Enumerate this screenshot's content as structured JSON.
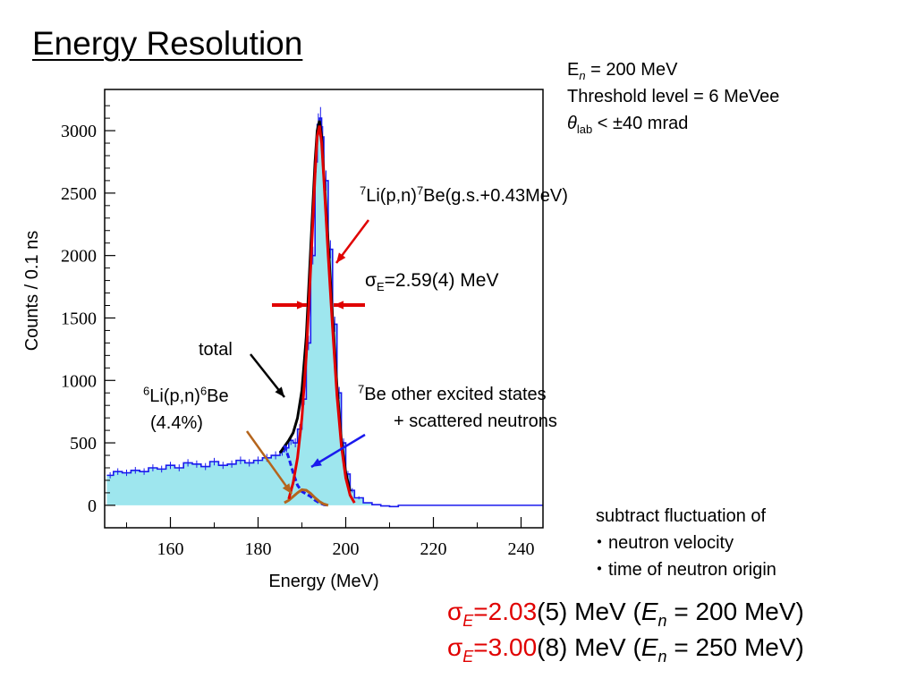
{
  "title": "Energy Resolution",
  "conditions": {
    "en_label": "E",
    "en_sub": "n",
    "en_value": " = 200 MeV",
    "threshold": "Threshold level = 6 MeVee",
    "theta_symbol": "θ",
    "theta_sub": "lab",
    "theta_value": " < ±40 mrad"
  },
  "annotations": {
    "main_peak_sup1": "7",
    "main_peak_mid": "Li(p,n)",
    "main_peak_sup2": "7",
    "main_peak_end": "Be(g.s.+0.43MeV)",
    "sigma_symbol": "σ",
    "sigma_sub": "E",
    "sigma_value": "=2.59(4) MeV",
    "total": "total",
    "li6_sup1": "6",
    "li6_mid": "Li(p,n)",
    "li6_sup2": "6",
    "li6_end": "Be",
    "li6_percent": "(4.4%)",
    "be7_sup": "7",
    "be7_line1": "Be other excited states",
    "be7_line2": "+ scattered neutrons"
  },
  "notes": {
    "heading": "subtract fluctuation of",
    "item1": "・neutron velocity",
    "item2": "・time of neutron origin"
  },
  "results": [
    {
      "sigma": "σ",
      "sub": "E",
      "eq": "=",
      "value": "2.03",
      "err": "(5) MeV (",
      "en": "E",
      "en_sub": "n",
      "en_value": " = 200 MeV)"
    },
    {
      "sigma": "σ",
      "sub": "E",
      "eq": "=",
      "value": "3.00",
      "err": "(8) MeV (",
      "en": "E",
      "en_sub": "n",
      "en_value": " = 250 MeV)"
    }
  ],
  "colors": {
    "red": "#e00000",
    "data": "#1a1aee",
    "fill": "#9ee6ee",
    "total": "#000000",
    "li6": "#b5651d"
  },
  "chart_data": {
    "type": "line",
    "xlabel": "Energy (MeV)",
    "ylabel": "Counts / 0.1 ns",
    "xlim": [
      145,
      245
    ],
    "ylim": [
      -180,
      3330
    ],
    "xticks": [
      160,
      180,
      200,
      220,
      240
    ],
    "yticks": [
      0,
      500,
      1000,
      1500,
      2000,
      2500,
      3000
    ],
    "series": [
      {
        "role": "data",
        "x": [
          145.5,
          147,
          149,
          151,
          153,
          155,
          157,
          159,
          161,
          163,
          165,
          167,
          169,
          171,
          173,
          175,
          177,
          179,
          181,
          183,
          185,
          186,
          187,
          188,
          189,
          190,
          191,
          192,
          193,
          193.5,
          194,
          194.5,
          195,
          196,
          197,
          198,
          199,
          200,
          201,
          202,
          204,
          206,
          208,
          210,
          212,
          220,
          230,
          240,
          245
        ],
        "y": [
          240,
          270,
          260,
          280,
          270,
          300,
          290,
          320,
          300,
          340,
          330,
          310,
          350,
          320,
          330,
          360,
          340,
          360,
          380,
          400,
          430,
          460,
          520,
          500,
          610,
          850,
          1300,
          2000,
          2750,
          3050,
          3100,
          2950,
          2600,
          2050,
          1450,
          900,
          500,
          250,
          120,
          60,
          20,
          5,
          -5,
          -10,
          0,
          0,
          0,
          0,
          0
        ]
      },
      {
        "role": "total",
        "x": [
          185,
          186,
          187,
          188,
          189,
          190,
          191,
          192,
          193,
          193.5,
          194,
          194.5,
          195,
          196,
          197,
          198,
          199,
          200,
          201
        ],
        "y": [
          420,
          470,
          520,
          580,
          700,
          920,
          1350,
          2050,
          2750,
          3000,
          3080,
          2950,
          2650,
          2100,
          1500,
          950,
          520,
          260,
          110
        ]
      },
      {
        "role": "main_peak",
        "x": [
          187,
          188,
          189,
          190,
          191,
          192,
          193,
          193.5,
          194,
          194.5,
          195,
          196,
          197,
          198,
          199,
          200,
          201,
          202
        ],
        "y": [
          50,
          180,
          380,
          700,
          1200,
          1900,
          2650,
          2950,
          3040,
          2900,
          2620,
          2000,
          1420,
          880,
          480,
          220,
          80,
          20
        ]
      },
      {
        "role": "be7_other",
        "x": [
          186,
          187,
          188,
          189,
          190,
          191,
          192,
          193,
          194,
          195,
          196
        ],
        "y": [
          480,
          380,
          260,
          160,
          110,
          90,
          70,
          40,
          20,
          5,
          0
        ]
      },
      {
        "role": "li6",
        "x": [
          186,
          187,
          188,
          189,
          190,
          191,
          192,
          193,
          194,
          195,
          196
        ],
        "y": [
          20,
          40,
          70,
          100,
          125,
          120,
          95,
          60,
          30,
          10,
          0
        ]
      }
    ]
  }
}
